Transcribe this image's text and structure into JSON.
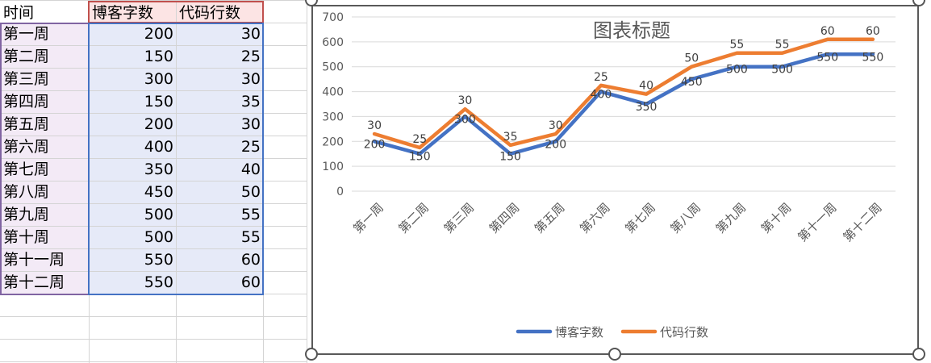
{
  "sheet": {
    "headers": [
      "时间",
      "博客字数",
      "代码行数"
    ],
    "rows": [
      [
        "第一周",
        "200",
        "30"
      ],
      [
        "第二周",
        "150",
        "25"
      ],
      [
        "第三周",
        "300",
        "30"
      ],
      [
        "第四周",
        "150",
        "35"
      ],
      [
        "第五周",
        "200",
        "30"
      ],
      [
        "第六周",
        "400",
        "25"
      ],
      [
        "第七周",
        "350",
        "40"
      ],
      [
        "第八周",
        "450",
        "50"
      ],
      [
        "第九周",
        "500",
        "55"
      ],
      [
        "第十周",
        "500",
        "55"
      ],
      [
        "第十一周",
        "550",
        "60"
      ],
      [
        "第十二周",
        "550",
        "60"
      ]
    ]
  },
  "colors": {
    "series1": "#4472C4",
    "series2": "#ED7D31",
    "header_fill": "#FCE4E4",
    "col0_fill": "#F3EAF6",
    "data_fill": "#E6EAF8",
    "gridline": "#D9D9D9"
  },
  "chart_data": {
    "type": "line",
    "title": "图表标题",
    "categories": [
      "第一周",
      "第二周",
      "第三周",
      "第四周",
      "第五周",
      "第六周",
      "第七周",
      "第八周",
      "第九周",
      "第十周",
      "第十一周",
      "第十二周"
    ],
    "series": [
      {
        "name": "博客字数",
        "values": [
          200,
          150,
          300,
          150,
          200,
          400,
          350,
          450,
          500,
          500,
          550,
          550
        ],
        "labels": [
          "200",
          "150",
          "300",
          "150",
          "200",
          "400",
          "350",
          "450",
          "500",
          "500",
          "550",
          "550"
        ]
      },
      {
        "name": "代码行数",
        "values": [
          30,
          25,
          30,
          35,
          30,
          25,
          40,
          50,
          55,
          55,
          60,
          60
        ],
        "labels": [
          "30",
          "25",
          "30",
          "35",
          "30",
          "25",
          "40",
          "50",
          "55",
          "55",
          "60",
          "60"
        ]
      }
    ],
    "stacked": true,
    "ylim": [
      0,
      700
    ],
    "yticks": [
      "0",
      "100",
      "200",
      "300",
      "400",
      "500",
      "600",
      "700"
    ],
    "grid": true,
    "legend_position": "bottom"
  }
}
